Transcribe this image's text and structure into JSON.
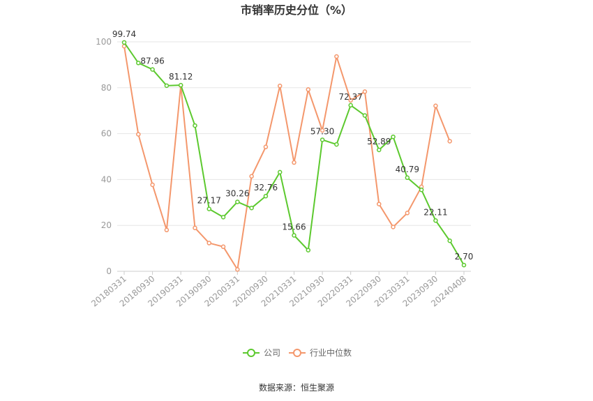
{
  "chart_data": {
    "type": "line",
    "title": "市销率历史分位（%）",
    "source": "数据来源：恒生聚源",
    "ylim": [
      0,
      100
    ],
    "yticks": [
      0,
      20,
      40,
      60,
      80,
      100
    ],
    "ytick_labels": [
      "0",
      "20",
      "40",
      "60",
      "80",
      "100"
    ],
    "x": [
      "20180331",
      "20180630",
      "20180930",
      "20181231",
      "20190331",
      "20190630",
      "20190930",
      "20191231",
      "20200331",
      "20200630",
      "20200930",
      "20201231",
      "20210331",
      "20210630",
      "20210930",
      "20211231",
      "20220331",
      "20220630",
      "20220930",
      "20221231",
      "20230331",
      "20230630",
      "20230930",
      "20231231",
      "20240408"
    ],
    "xtick_labels": [
      "20180331",
      "20180930",
      "20190331",
      "20190930",
      "20200331",
      "20200930",
      "20210331",
      "20210930",
      "20220331",
      "20220930",
      "20230331",
      "20230930",
      "20240408"
    ],
    "grid": true,
    "legend_position": "bottom",
    "series": [
      {
        "name": "公司",
        "color": "#5cc92e",
        "values": [
          99.74,
          90.8,
          87.96,
          80.9,
          81.12,
          63.5,
          27.17,
          23.6,
          30.26,
          27.6,
          32.76,
          43.2,
          15.66,
          9.2,
          57.3,
          55.3,
          72.37,
          67.9,
          52.89,
          58.6,
          40.79,
          35.5,
          22.11,
          13.3,
          2.7
        ],
        "labels": [
          "99.74",
          "",
          "87.96",
          "",
          "81.12",
          "",
          "27.17",
          "",
          "30.26",
          "",
          "32.76",
          "",
          "15.66",
          "",
          "57.30",
          "",
          "72.37",
          "",
          "52.89",
          "",
          "40.79",
          "",
          "22.11",
          "",
          "2.70"
        ]
      },
      {
        "name": "行业中位数",
        "color": "#f4976c",
        "values": [
          98.1,
          59.7,
          37.7,
          18.0,
          81.0,
          18.9,
          12.3,
          10.7,
          0.8,
          41.4,
          54.2,
          80.8,
          47.4,
          79.2,
          61.4,
          93.6,
          74.5,
          78.3,
          29.3,
          19.3,
          25.4,
          36.8,
          72.1,
          56.7,
          null
        ],
        "labels": []
      }
    ]
  }
}
